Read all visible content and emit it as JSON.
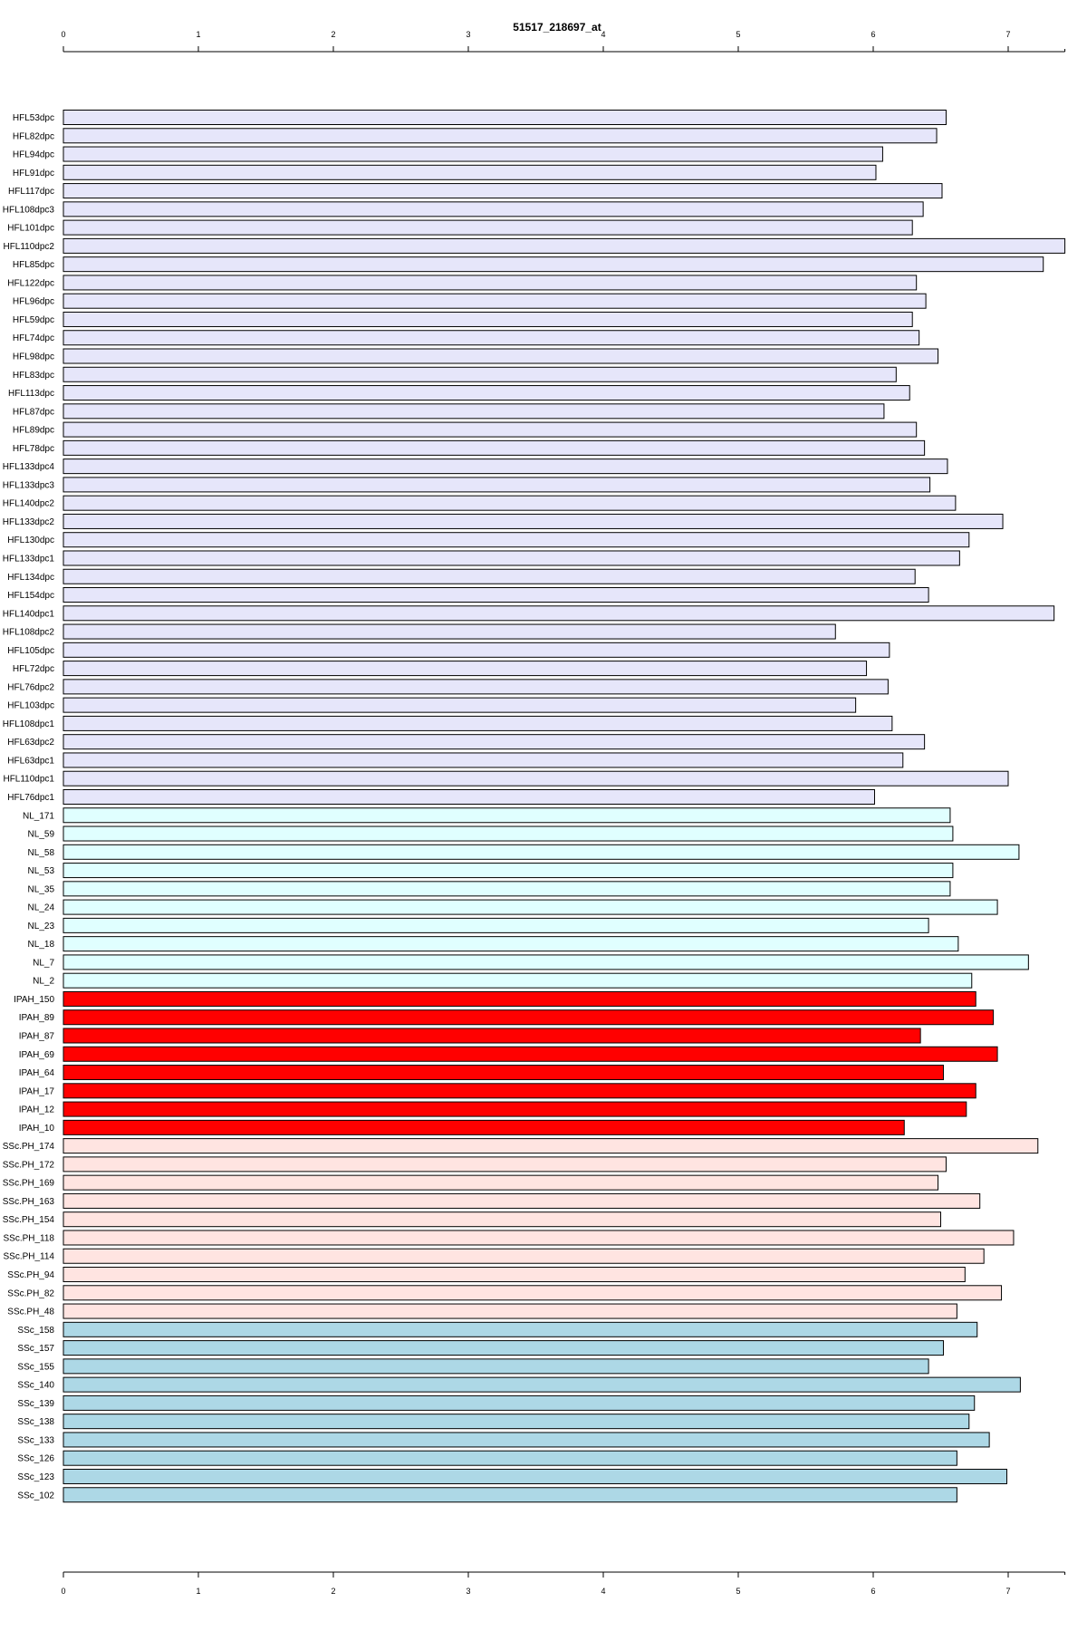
{
  "chart_data": {
    "type": "bar",
    "orientation": "horizontal",
    "title": "51517_218697_at",
    "xlabel": "",
    "ylabel": "",
    "xlim": [
      0,
      7.42
    ],
    "xticks": [
      0,
      1,
      2,
      3,
      4,
      5,
      6,
      7
    ],
    "grid": false,
    "legend": "none",
    "categories": [
      "HFL53dpc",
      "HFL82dpc",
      "HFL94dpc",
      "HFL91dpc",
      "HFL117dpc",
      "HFL108dpc3",
      "HFL101dpc",
      "HFL110dpc2",
      "HFL85dpc",
      "HFL122dpc",
      "HFL96dpc",
      "HFL59dpc",
      "HFL74dpc",
      "HFL98dpc",
      "HFL83dpc",
      "HFL113dpc",
      "HFL87dpc",
      "HFL89dpc",
      "HFL78dpc",
      "HFL133dpc4",
      "HFL133dpc3",
      "HFL140dpc2",
      "HFL133dpc2",
      "HFL130dpc",
      "HFL133dpc1",
      "HFL134dpc",
      "HFL154dpc",
      "HFL140dpc1",
      "HFL108dpc2",
      "HFL105dpc",
      "HFL72dpc",
      "HFL76dpc2",
      "HFL103dpc",
      "HFL108dpc1",
      "HFL63dpc2",
      "HFL63dpc1",
      "HFL110dpc1",
      "HFL76dpc1",
      "NL_171",
      "NL_59",
      "NL_58",
      "NL_53",
      "NL_35",
      "NL_24",
      "NL_23",
      "NL_18",
      "NL_7",
      "NL_2",
      "IPAH_150",
      "IPAH_89",
      "IPAH_87",
      "IPAH_69",
      "IPAH_64",
      "IPAH_17",
      "IPAH_12",
      "IPAH_10",
      "SSc.PH_174",
      "SSc.PH_172",
      "SSc.PH_169",
      "SSc.PH_163",
      "SSc.PH_154",
      "SSc.PH_118",
      "SSc.PH_114",
      "SSc.PH_94",
      "SSc.PH_82",
      "SSc.PH_48",
      "SSc_158",
      "SSc_157",
      "SSc_155",
      "SSc_140",
      "SSc_139",
      "SSc_138",
      "SSc_133",
      "SSc_126",
      "SSc_123",
      "SSc_102"
    ],
    "values": [
      6.54,
      6.47,
      6.07,
      6.02,
      6.51,
      6.37,
      6.29,
      7.42,
      7.26,
      6.32,
      6.39,
      6.29,
      6.34,
      6.48,
      6.17,
      6.27,
      6.08,
      6.32,
      6.38,
      6.55,
      6.42,
      6.61,
      6.96,
      6.71,
      6.64,
      6.31,
      6.41,
      7.34,
      5.72,
      6.12,
      5.95,
      6.11,
      5.87,
      6.14,
      6.38,
      6.22,
      7.0,
      6.01,
      6.57,
      6.59,
      7.08,
      6.59,
      6.57,
      6.92,
      6.41,
      6.63,
      7.15,
      6.73,
      6.76,
      6.89,
      6.35,
      6.92,
      6.52,
      6.76,
      6.69,
      6.23,
      7.22,
      6.54,
      6.48,
      6.79,
      6.5,
      7.04,
      6.82,
      6.68,
      6.95,
      6.62,
      6.77,
      6.52,
      6.41,
      7.09,
      6.75,
      6.71,
      6.86,
      6.62,
      6.99,
      6.62
    ],
    "groups": [
      {
        "count": 38,
        "color": "#e6e6fa"
      },
      {
        "count": 10,
        "color": "#e0ffff"
      },
      {
        "count": 8,
        "color": "#ff0000"
      },
      {
        "count": 10,
        "color": "#ffe4e1"
      },
      {
        "count": 10,
        "color": "#add8e6"
      }
    ]
  }
}
